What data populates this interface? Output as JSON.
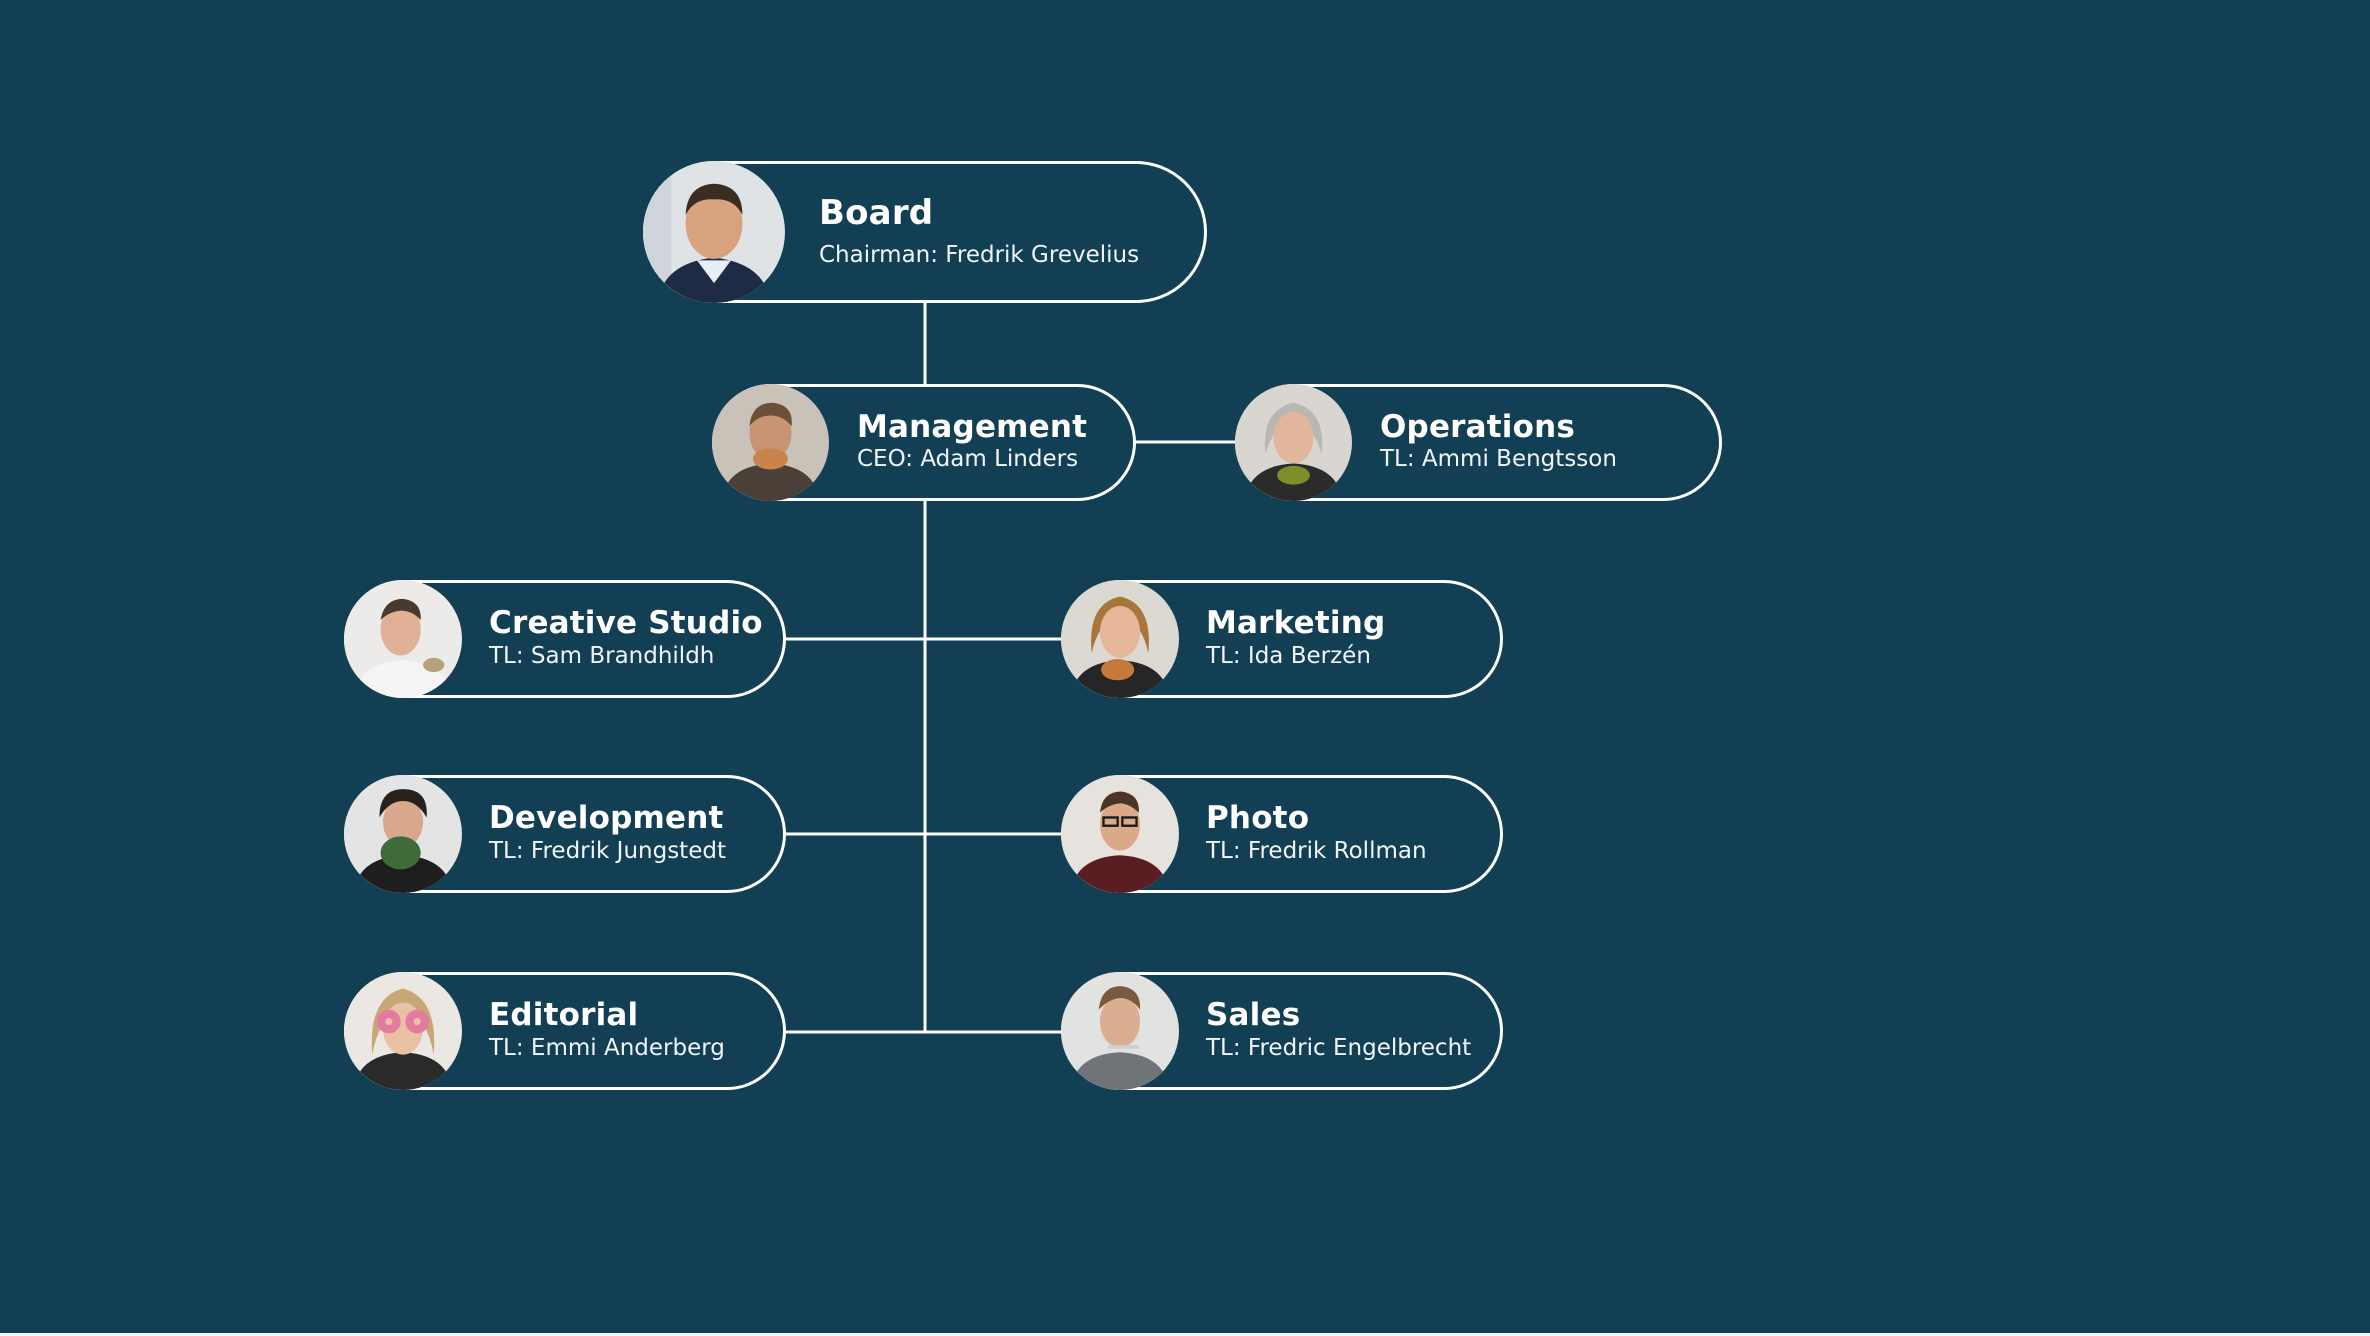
{
  "colors": {
    "background": "#133f54",
    "line": "#ffffff",
    "text": "#ffffff"
  },
  "nodes": {
    "board": {
      "title": "Board",
      "subtitle": "Chairman: Fredrik Grevelius",
      "avatar_icon": "person-portrait-icon"
    },
    "management": {
      "title": "Management",
      "subtitle": "CEO: Adam Linders",
      "avatar_icon": "person-portrait-icon"
    },
    "operations": {
      "title": "Operations",
      "subtitle": "TL: Ammi Bengtsson",
      "avatar_icon": "person-portrait-icon"
    },
    "creative_studio": {
      "title": "Creative Studio",
      "subtitle": "TL: Sam Brandhildh",
      "avatar_icon": "person-portrait-icon"
    },
    "marketing": {
      "title": "Marketing",
      "subtitle": "TL: Ida Berzén",
      "avatar_icon": "person-portrait-icon"
    },
    "development": {
      "title": "Development",
      "subtitle": "TL: Fredrik Jungstedt",
      "avatar_icon": "person-portrait-icon"
    },
    "photo": {
      "title": "Photo",
      "subtitle": "TL: Fredrik Rollman",
      "avatar_icon": "person-portrait-icon"
    },
    "editorial": {
      "title": "Editorial",
      "subtitle": "TL: Emmi Anderberg",
      "avatar_icon": "person-portrait-icon"
    },
    "sales": {
      "title": "Sales",
      "subtitle": "TL: Fredric Engelbrecht",
      "avatar_icon": "person-portrait-icon"
    }
  }
}
